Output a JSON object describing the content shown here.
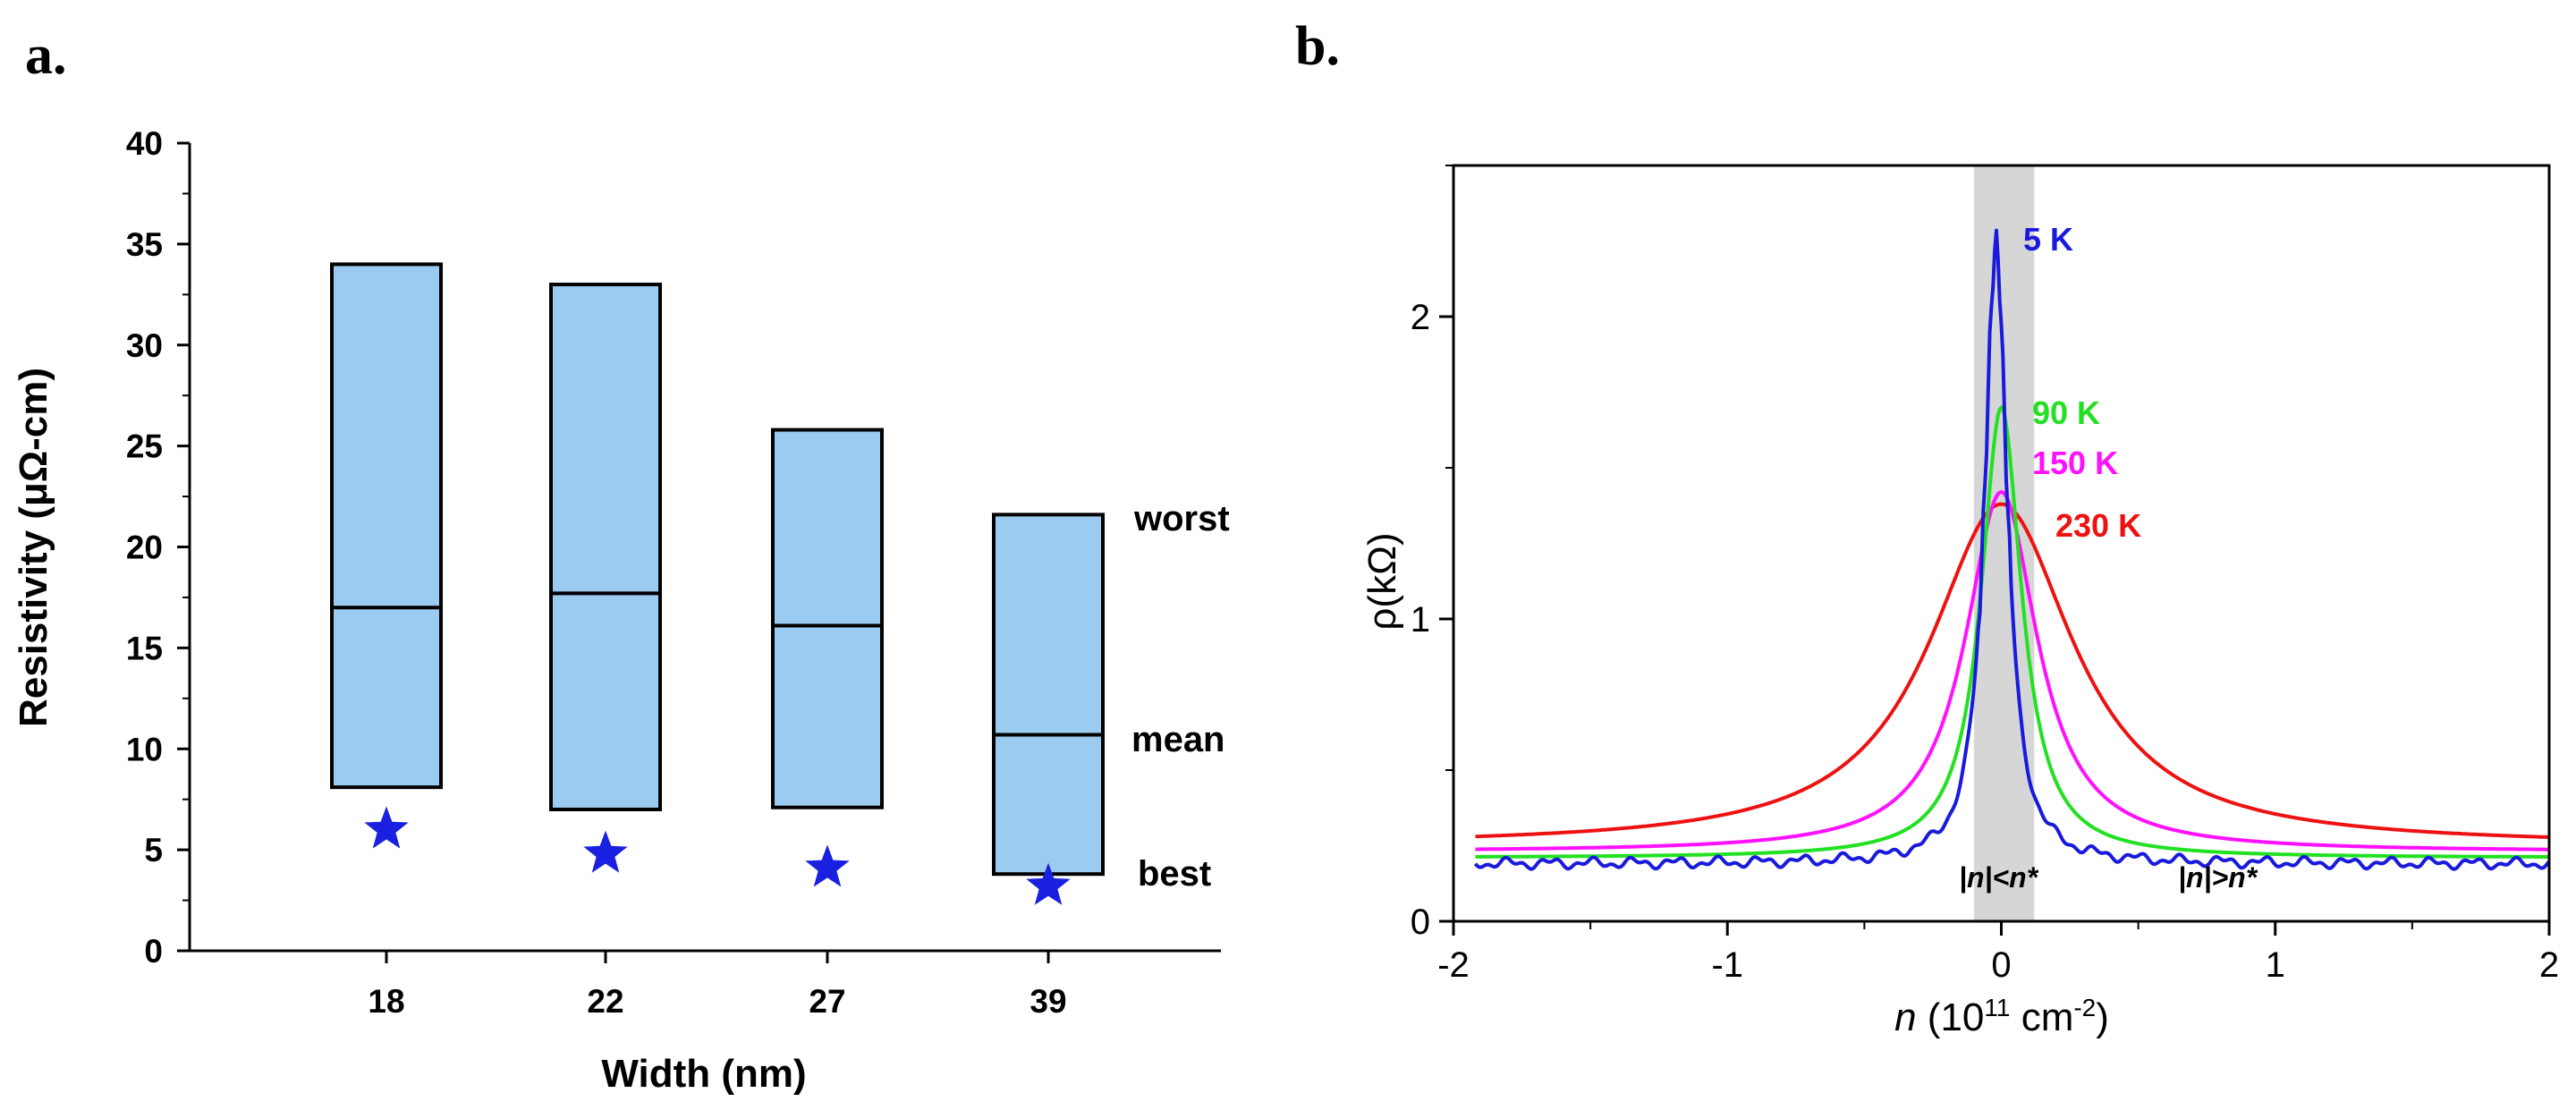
{
  "panels": {
    "a": {
      "label": "a."
    },
    "b": {
      "label": "b."
    }
  },
  "chart_data": [
    {
      "type": "box",
      "panel": "a",
      "title": "",
      "xlabel": "Width (nm)",
      "ylabel": "Resistivity (μΩ-cm)",
      "ylim": [
        0,
        40
      ],
      "yticks": [
        0,
        5,
        10,
        15,
        20,
        25,
        30,
        35,
        40
      ],
      "categories": [
        "18",
        "22",
        "27",
        "39"
      ],
      "boxes": [
        {
          "category": "18",
          "worst": 34.0,
          "mean": 17.0,
          "low": 8.1,
          "best": 6.0
        },
        {
          "category": "22",
          "worst": 33.0,
          "mean": 17.7,
          "low": 7.0,
          "best": 4.8
        },
        {
          "category": "27",
          "worst": 25.8,
          "mean": 16.1,
          "low": 7.1,
          "best": 4.1
        },
        {
          "category": "39",
          "worst": 21.6,
          "mean": 10.7,
          "low": 3.8,
          "best": 3.2
        }
      ],
      "annotations": {
        "worst": "worst",
        "mean": "mean",
        "best": "best"
      },
      "colors": {
        "box_fill": "#9bcbf0",
        "star": "#1a20e0"
      }
    },
    {
      "type": "line",
      "panel": "b",
      "title": "",
      "xlabel": "n (10¹¹ cm⁻²)",
      "ylabel": "ρ(kΩ)",
      "xlim": [
        -2,
        2
      ],
      "ylim": [
        0,
        2.5
      ],
      "xticks": [
        -2,
        -1,
        0,
        1,
        2
      ],
      "yticks": [
        0,
        1,
        2
      ],
      "shaded_band": {
        "x0": -0.1,
        "x1": 0.12,
        "color": "#d6d6d6"
      },
      "region_labels": [
        "|n|<n*",
        "|n|>n*"
      ],
      "series": [
        {
          "name": "5 K",
          "color": "#1a1adc",
          "peak": 2.25,
          "base": 0.19,
          "width": 0.05,
          "noisy": true
        },
        {
          "name": "90 K",
          "color": "#22e022",
          "peak": 1.7,
          "base": 0.21,
          "width": 0.09
        },
        {
          "name": "150 K",
          "color": "#ff10ff",
          "peak": 1.42,
          "base": 0.23,
          "width": 0.16
        },
        {
          "name": "230 K",
          "color": "#ee1111",
          "peak": 1.38,
          "base": 0.25,
          "width": 0.32
        }
      ]
    }
  ]
}
